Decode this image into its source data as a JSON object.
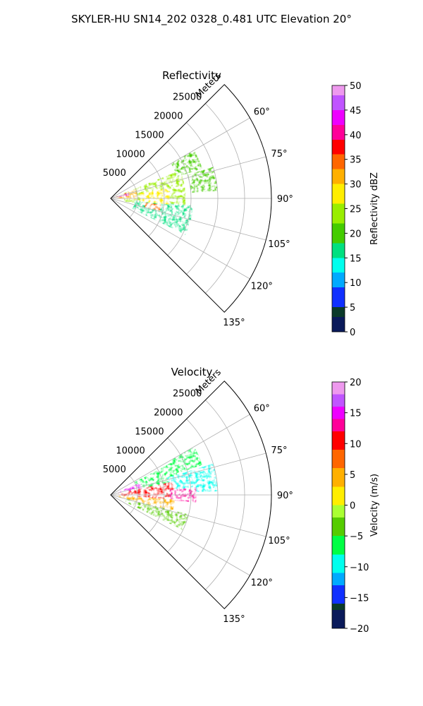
{
  "title": "SKYLER-HU  SN14_202  0328_0.481 UTC Elevation 20°",
  "chart_data": [
    {
      "type": "heatmap",
      "projection": "polar-sector",
      "title": "Reflectivity",
      "range_axis_label": "Meters",
      "range_ticks": [
        5000,
        10000,
        15000,
        20000,
        25000
      ],
      "range_tick_labels": [
        "5000",
        "10000",
        "15000",
        "20000",
        "25000"
      ],
      "rlim": [
        0,
        30000
      ],
      "azimuth_range": [
        45,
        135
      ],
      "azimuth_ticks": [
        60,
        75,
        90,
        105,
        120,
        135
      ],
      "azimuth_tick_labels": [
        "60°",
        "75°",
        "90°",
        "105°",
        "120°",
        "135°"
      ],
      "grid": true,
      "colorbar": {
        "label": "Reflectivity dBZ",
        "range": [
          0,
          50
        ],
        "ticks": [
          0,
          5,
          10,
          15,
          20,
          25,
          30,
          35,
          40,
          45,
          50
        ],
        "tick_labels": [
          "0",
          "5",
          "10",
          "15",
          "20",
          "25",
          "30",
          "35",
          "40",
          "45",
          "50"
        ],
        "stops": [
          [
            0,
            "#0a1a5a"
          ],
          [
            3,
            "#0b3a2a"
          ],
          [
            5,
            "#1030ff"
          ],
          [
            9,
            "#00aaff"
          ],
          [
            12,
            "#00ffee"
          ],
          [
            15,
            "#00e080"
          ],
          [
            18,
            "#44cc00"
          ],
          [
            22,
            "#99ee00"
          ],
          [
            26,
            "#ffee00"
          ],
          [
            30,
            "#ffb000"
          ],
          [
            33,
            "#ff6600"
          ],
          [
            36,
            "#ff0000"
          ],
          [
            39,
            "#ff0099"
          ],
          [
            42,
            "#ee00ff"
          ],
          [
            45,
            "#c055ff"
          ],
          [
            48,
            "#ee99ee"
          ],
          [
            50,
            "#ffe0ff"
          ]
        ]
      },
      "echo_regions": [
        {
          "az": [
            68,
            103
          ],
          "r": [
            2500,
            14000
          ],
          "value": 23
        },
        {
          "az": [
            95,
            116
          ],
          "r": [
            4500,
            15500
          ],
          "value": 16
        },
        {
          "az": [
            60,
            72
          ],
          "r": [
            13000,
            18000
          ],
          "value": 21
        },
        {
          "az": [
            73,
            86
          ],
          "r": [
            15000,
            20000
          ],
          "value": 19
        },
        {
          "az": [
            70,
            92
          ],
          "r": [
            0,
            5000
          ],
          "value": 30
        },
        {
          "az": [
            72,
            82
          ],
          "r": [
            500,
            3500
          ],
          "value": 40
        },
        {
          "az": [
            80,
            96
          ],
          "r": [
            5500,
            11000
          ],
          "value": 27
        },
        {
          "az": [
            97,
            104
          ],
          "r": [
            6500,
            9500
          ],
          "value": 35
        }
      ]
    },
    {
      "type": "heatmap",
      "projection": "polar-sector",
      "title": "Velocity",
      "range_axis_label": "Meters",
      "range_ticks": [
        5000,
        10000,
        15000,
        20000,
        25000
      ],
      "range_tick_labels": [
        "5000",
        "10000",
        "15000",
        "20000",
        "25000"
      ],
      "rlim": [
        0,
        30000
      ],
      "azimuth_range": [
        45,
        135
      ],
      "azimuth_ticks": [
        60,
        75,
        90,
        105,
        120,
        135
      ],
      "azimuth_tick_labels": [
        "60°",
        "75°",
        "90°",
        "105°",
        "120°",
        "135°"
      ],
      "grid": true,
      "colorbar": {
        "label": "Velocity (m/s)",
        "range": [
          -20,
          20
        ],
        "ticks": [
          -20,
          -15,
          -10,
          -5,
          0,
          5,
          10,
          15,
          20
        ],
        "tick_labels": [
          "−20",
          "−15",
          "−10",
          "−5",
          "0",
          "5",
          "10",
          "15",
          "20"
        ],
        "stops": [
          [
            -20,
            "#0a1a5a"
          ],
          [
            -17,
            "#0b3a2a"
          ],
          [
            -16,
            "#1030ff"
          ],
          [
            -13,
            "#00aaff"
          ],
          [
            -11,
            "#00ffee"
          ],
          [
            -8,
            "#00ff44"
          ],
          [
            -5,
            "#55cc00"
          ],
          [
            -2,
            "#aaff33"
          ],
          [
            0,
            "#ffee00"
          ],
          [
            3,
            "#ffb000"
          ],
          [
            6,
            "#ff6600"
          ],
          [
            9,
            "#ff0000"
          ],
          [
            12,
            "#ff0099"
          ],
          [
            14,
            "#ee00ff"
          ],
          [
            16,
            "#c055ff"
          ],
          [
            18,
            "#ee99ee"
          ],
          [
            20,
            "#ffe0ff"
          ]
        ]
      },
      "echo_regions": [
        {
          "az": [
            60,
            72
          ],
          "r": [
            13000,
            18000
          ],
          "value": -8
        },
        {
          "az": [
            62,
            78
          ],
          "r": [
            5000,
            13000
          ],
          "value": -7
        },
        {
          "az": [
            73,
            88
          ],
          "r": [
            11000,
            20000
          ],
          "value": -11
        },
        {
          "az": [
            68,
            78
          ],
          "r": [
            1500,
            6000
          ],
          "value": 14
        },
        {
          "az": [
            78,
            95
          ],
          "r": [
            1500,
            12000
          ],
          "value": 9
        },
        {
          "az": [
            85,
            95
          ],
          "r": [
            11000,
            16000
          ],
          "value": 13
        },
        {
          "az": [
            94,
            106
          ],
          "r": [
            1000,
            12000
          ],
          "value": 4
        },
        {
          "az": [
            104,
            116
          ],
          "r": [
            3000,
            15000
          ],
          "value": -3
        }
      ]
    }
  ]
}
